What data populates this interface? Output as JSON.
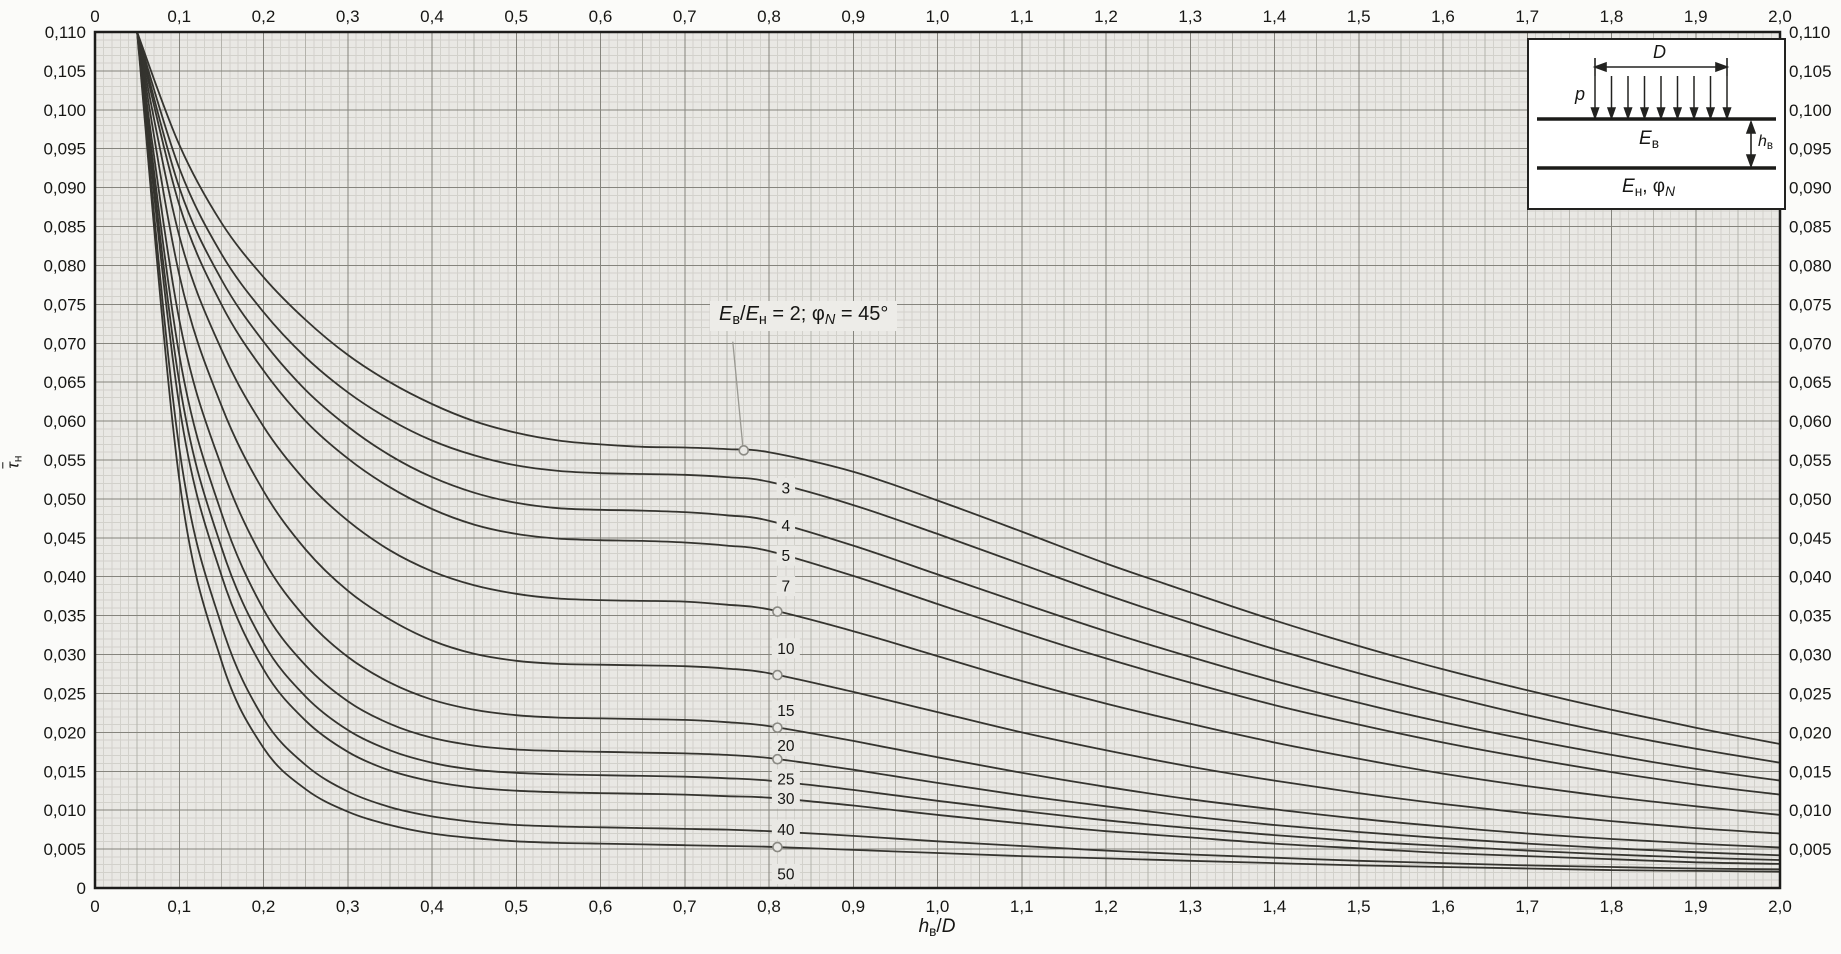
{
  "chart_data": {
    "type": "line",
    "title": "",
    "xlabel_tokens": [
      {
        "t": "h",
        "style": "i"
      },
      {
        "t": "в",
        "style": "sub"
      },
      {
        "t": "/"
      },
      {
        "t": "D",
        "style": "i"
      }
    ],
    "ylabel_tokens": [
      {
        "t": "τ",
        "style": "iover"
      },
      {
        "t": "н",
        "style": "sub"
      }
    ],
    "xlim": [
      0,
      2.0
    ],
    "ylim": [
      0,
      0.11
    ],
    "x_tick_step": 0.1,
    "y_tick_step": 0.005,
    "x_tick_labels": [
      "0",
      "0,1",
      "0,2",
      "0,3",
      "0,4",
      "0,5",
      "0,6",
      "0,7",
      "0,8",
      "0,9",
      "1,0",
      "1,1",
      "1,2",
      "1,3",
      "1,4",
      "1,5",
      "1,6",
      "1,7",
      "1,8",
      "1,9",
      "2,0"
    ],
    "y_tick_labels": [
      "0",
      "0,005",
      "0,010",
      "0,015",
      "0,020",
      "0,025",
      "0,030",
      "0,035",
      "0,040",
      "0,045",
      "0,050",
      "0,055",
      "0,060",
      "0,065",
      "0,070",
      "0,075",
      "0,080",
      "0,085",
      "0,090",
      "0,095",
      "0,100",
      "0,105",
      "0,110"
    ],
    "grid": {
      "x_minor": 0.01,
      "x_medium": 0.05,
      "x_major": 0.1,
      "y_minor": 0.001,
      "y_major": 0.005,
      "visible": true
    },
    "legend_position": "curve-labels-inline",
    "colors": {
      "plot_bg": "#e9e8e4",
      "grid_minor": "#d2d1cb",
      "grid_medium": "#b4b3ac",
      "grid_major": "#85847d",
      "frame": "#1c1c1a",
      "curve": "#35342f",
      "marker_stroke": "#8b8a84",
      "callout": "#9a9992",
      "label_text": "#1a1a18"
    },
    "x": [
      0.05,
      0.1,
      0.15,
      0.2,
      0.25,
      0.3,
      0.35,
      0.4,
      0.45,
      0.5,
      0.55,
      0.6,
      0.65,
      0.7,
      0.75,
      0.8,
      0.9,
      1.0,
      1.1,
      1.2,
      1.3,
      1.4,
      1.5,
      1.6,
      1.7,
      1.8,
      1.9,
      2.0
    ],
    "series": [
      {
        "name": "2",
        "label": null,
        "y": [
          0.11,
          0.0955,
          0.0855,
          0.0785,
          0.073,
          0.0685,
          0.065,
          0.0622,
          0.06,
          0.0585,
          0.0575,
          0.057,
          0.0567,
          0.0566,
          0.0564,
          0.056,
          0.0535,
          0.0498,
          0.0458,
          0.0417,
          0.038,
          0.0344,
          0.0311,
          0.0281,
          0.0254,
          0.0229,
          0.0206,
          0.0185
        ]
      },
      {
        "name": "3",
        "label": "3",
        "label_x": 0.82,
        "label_y": 0.0514,
        "y": [
          0.11,
          0.0925,
          0.0815,
          0.074,
          0.0682,
          0.0637,
          0.0602,
          0.0575,
          0.0556,
          0.0543,
          0.0536,
          0.0533,
          0.0532,
          0.0531,
          0.0528,
          0.0522,
          0.0492,
          0.0455,
          0.0416,
          0.0377,
          0.0341,
          0.0307,
          0.0276,
          0.0248,
          0.0222,
          0.0199,
          0.0179,
          0.0161
        ]
      },
      {
        "name": "4",
        "label": "4",
        "label_x": 0.82,
        "label_y": 0.0466,
        "y": [
          0.11,
          0.09,
          0.0782,
          0.0702,
          0.064,
          0.0593,
          0.0556,
          0.0528,
          0.0508,
          0.0495,
          0.0488,
          0.0486,
          0.0485,
          0.0483,
          0.0479,
          0.0472,
          0.044,
          0.0403,
          0.0366,
          0.033,
          0.0297,
          0.0266,
          0.0238,
          0.0213,
          0.0191,
          0.0171,
          0.0153,
          0.0138
        ]
      },
      {
        "name": "5",
        "label": "5",
        "label_x": 0.82,
        "label_y": 0.0427,
        "y": [
          0.11,
          0.0878,
          0.075,
          0.0665,
          0.06,
          0.0552,
          0.0515,
          0.0487,
          0.0467,
          0.0455,
          0.0449,
          0.0447,
          0.0446,
          0.0444,
          0.044,
          0.0433,
          0.0401,
          0.0365,
          0.0329,
          0.0295,
          0.0264,
          0.0235,
          0.021,
          0.0187,
          0.0167,
          0.0149,
          0.0133,
          0.012
        ]
      },
      {
        "name": "7",
        "label": "7",
        "label_x": 0.82,
        "label_y": 0.0388,
        "marker_x": 0.81,
        "y": [
          0.11,
          0.0838,
          0.0692,
          0.0593,
          0.0523,
          0.0472,
          0.0434,
          0.0407,
          0.0389,
          0.0378,
          0.0372,
          0.037,
          0.0369,
          0.0368,
          0.0364,
          0.0358,
          0.033,
          0.0298,
          0.0266,
          0.0237,
          0.0211,
          0.0187,
          0.0166,
          0.0147,
          0.0131,
          0.0117,
          0.0105,
          0.0094
        ]
      },
      {
        "name": "10",
        "label": "10",
        "label_x": 0.82,
        "label_y": 0.0308,
        "marker_x": 0.81,
        "y": [
          0.11,
          0.0788,
          0.062,
          0.051,
          0.0435,
          0.0382,
          0.0345,
          0.0318,
          0.0301,
          0.0292,
          0.0288,
          0.0287,
          0.0286,
          0.0285,
          0.0282,
          0.0276,
          0.0252,
          0.0226,
          0.02,
          0.0177,
          0.0156,
          0.0138,
          0.0122,
          0.0108,
          0.0096,
          0.0086,
          0.0077,
          0.007
        ]
      },
      {
        "name": "15",
        "label": "15",
        "label_x": 0.82,
        "label_y": 0.0228,
        "marker_x": 0.81,
        "y": [
          0.11,
          0.073,
          0.0542,
          0.0422,
          0.0347,
          0.0297,
          0.0264,
          0.0242,
          0.0229,
          0.0222,
          0.0219,
          0.0218,
          0.0217,
          0.0216,
          0.0213,
          0.0208,
          0.0189,
          0.0168,
          0.0148,
          0.013,
          0.0114,
          0.0101,
          0.0089,
          0.0079,
          0.007,
          0.0063,
          0.0057,
          0.0052
        ]
      },
      {
        "name": "20",
        "label": "20",
        "label_x": 0.82,
        "label_y": 0.0183,
        "marker_x": 0.81,
        "y": [
          0.11,
          0.0685,
          0.0482,
          0.0358,
          0.0286,
          0.024,
          0.0211,
          0.0193,
          0.0183,
          0.0178,
          0.0176,
          0.0175,
          0.0174,
          0.0173,
          0.0171,
          0.0167,
          0.0152,
          0.0135,
          0.0119,
          0.0105,
          0.0092,
          0.0081,
          0.0072,
          0.0064,
          0.0057,
          0.0051,
          0.0046,
          0.0042
        ]
      },
      {
        "name": "25",
        "label": "25",
        "label_x": 0.82,
        "label_y": 0.014,
        "y": [
          0.11,
          0.065,
          0.0438,
          0.0315,
          0.0246,
          0.0203,
          0.0177,
          0.0161,
          0.0152,
          0.0148,
          0.0146,
          0.0145,
          0.0144,
          0.0143,
          0.0141,
          0.0138,
          0.0126,
          0.0112,
          0.0099,
          0.0087,
          0.0077,
          0.0068,
          0.006,
          0.0054,
          0.0048,
          0.0043,
          0.0039,
          0.0036
        ]
      },
      {
        "name": "30",
        "label": "30",
        "label_x": 0.82,
        "label_y": 0.0115,
        "y": [
          0.11,
          0.062,
          0.0402,
          0.0281,
          0.0215,
          0.0175,
          0.0151,
          0.0137,
          0.0129,
          0.0125,
          0.0123,
          0.0122,
          0.0121,
          0.012,
          0.0118,
          0.0116,
          0.0106,
          0.0094,
          0.0083,
          0.0073,
          0.0065,
          0.0057,
          0.0051,
          0.0045,
          0.0041,
          0.0037,
          0.0033,
          0.0031
        ]
      },
      {
        "name": "40",
        "label": "40",
        "label_x": 0.82,
        "label_y": 0.0075,
        "y": [
          0.11,
          0.0565,
          0.0338,
          0.0218,
          0.0158,
          0.0124,
          0.0104,
          0.0092,
          0.0085,
          0.0081,
          0.0079,
          0.0078,
          0.0077,
          0.0076,
          0.0075,
          0.0073,
          0.0067,
          0.006,
          0.0054,
          0.0048,
          0.0043,
          0.0039,
          0.0035,
          0.0032,
          0.0029,
          0.0027,
          0.0025,
          0.0024
        ]
      },
      {
        "name": "50",
        "label": "50",
        "label_x": 0.82,
        "label_y": 0.0018,
        "marker_x": 0.81,
        "y": [
          0.11,
          0.0525,
          0.0292,
          0.018,
          0.0127,
          0.0098,
          0.0081,
          0.007,
          0.0064,
          0.006,
          0.0058,
          0.0057,
          0.0056,
          0.0055,
          0.0054,
          0.0053,
          0.0049,
          0.0045,
          0.0041,
          0.0038,
          0.0035,
          0.0032,
          0.0029,
          0.0027,
          0.0025,
          0.0023,
          0.0022,
          0.0021
        ]
      }
    ],
    "annotation": {
      "tokens": [
        {
          "t": "E",
          "style": "i"
        },
        {
          "t": "в",
          "style": "sub"
        },
        {
          "t": "/"
        },
        {
          "t": "E",
          "style": "i"
        },
        {
          "t": "н",
          "style": "sub"
        },
        {
          "t": " = 2; φ"
        },
        {
          "t": "N",
          "style": "subi"
        },
        {
          "t": " = 45°"
        }
      ],
      "text_x": 0.73,
      "text_y": 0.0735,
      "line_x1": 0.757,
      "line_y1": 0.0702,
      "circle_x": 0.77,
      "circle_series": "2"
    }
  },
  "inset": {
    "d_tokens": [
      {
        "t": "D",
        "style": "i"
      }
    ],
    "p_tokens": [
      {
        "t": "p",
        "style": "i"
      }
    ],
    "e_upper_tokens": [
      {
        "t": "E",
        "style": "i"
      },
      {
        "t": "в",
        "style": "sub"
      }
    ],
    "h_tokens": [
      {
        "t": "h",
        "style": "i"
      },
      {
        "t": "в",
        "style": "sub"
      }
    ],
    "e_lower_tokens": [
      {
        "t": "E",
        "style": "i"
      },
      {
        "t": "н",
        "style": "sub"
      },
      {
        "t": ", φ"
      },
      {
        "t": "N",
        "style": "subi"
      }
    ]
  }
}
